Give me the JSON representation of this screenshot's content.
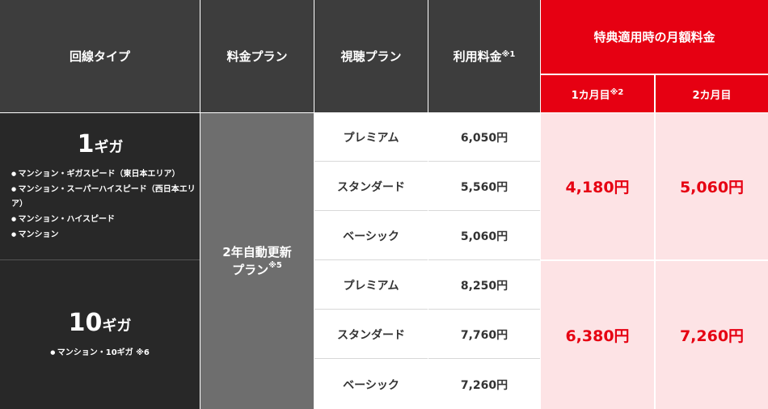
{
  "headers": {
    "line_type": "回線タイプ",
    "fee_plan": "料金プラン",
    "view_plan": "視聴プラン",
    "usage_fee": "利用料金",
    "usage_fee_note": "※1",
    "benefit": "特典適用時の月額料金",
    "month1": "1カ月目",
    "month1_note": "※2",
    "month2": "2カ月目"
  },
  "fee_plan_cell": {
    "line1": "2年自動更新",
    "line2": "プラン",
    "note": "※5"
  },
  "groups": [
    {
      "speed_num": "1",
      "speed_unit": "ギガ",
      "items": [
        "マンション・ギガスピード（東日本エリア）",
        "マンション・スーパーハイスピード（西日本エリア）",
        "マンション・ハイスピード",
        "マンション"
      ],
      "plans": [
        {
          "name": "プレミアム",
          "price": "6,050円"
        },
        {
          "name": "スタンダード",
          "price": "5,560円"
        },
        {
          "name": "ベーシック",
          "price": "5,060円"
        }
      ],
      "month1": "4,180円",
      "month2": "5,060円"
    },
    {
      "speed_num": "10",
      "speed_unit": "ギガ",
      "items": [
        "マンション・10ギガ ※6"
      ],
      "plans": [
        {
          "name": "プレミアム",
          "price": "8,250円"
        },
        {
          "name": "スタンダード",
          "price": "7,760円"
        },
        {
          "name": "ベーシック",
          "price": "7,260円"
        }
      ],
      "month1": "6,380円",
      "month2": "7,260円"
    }
  ]
}
